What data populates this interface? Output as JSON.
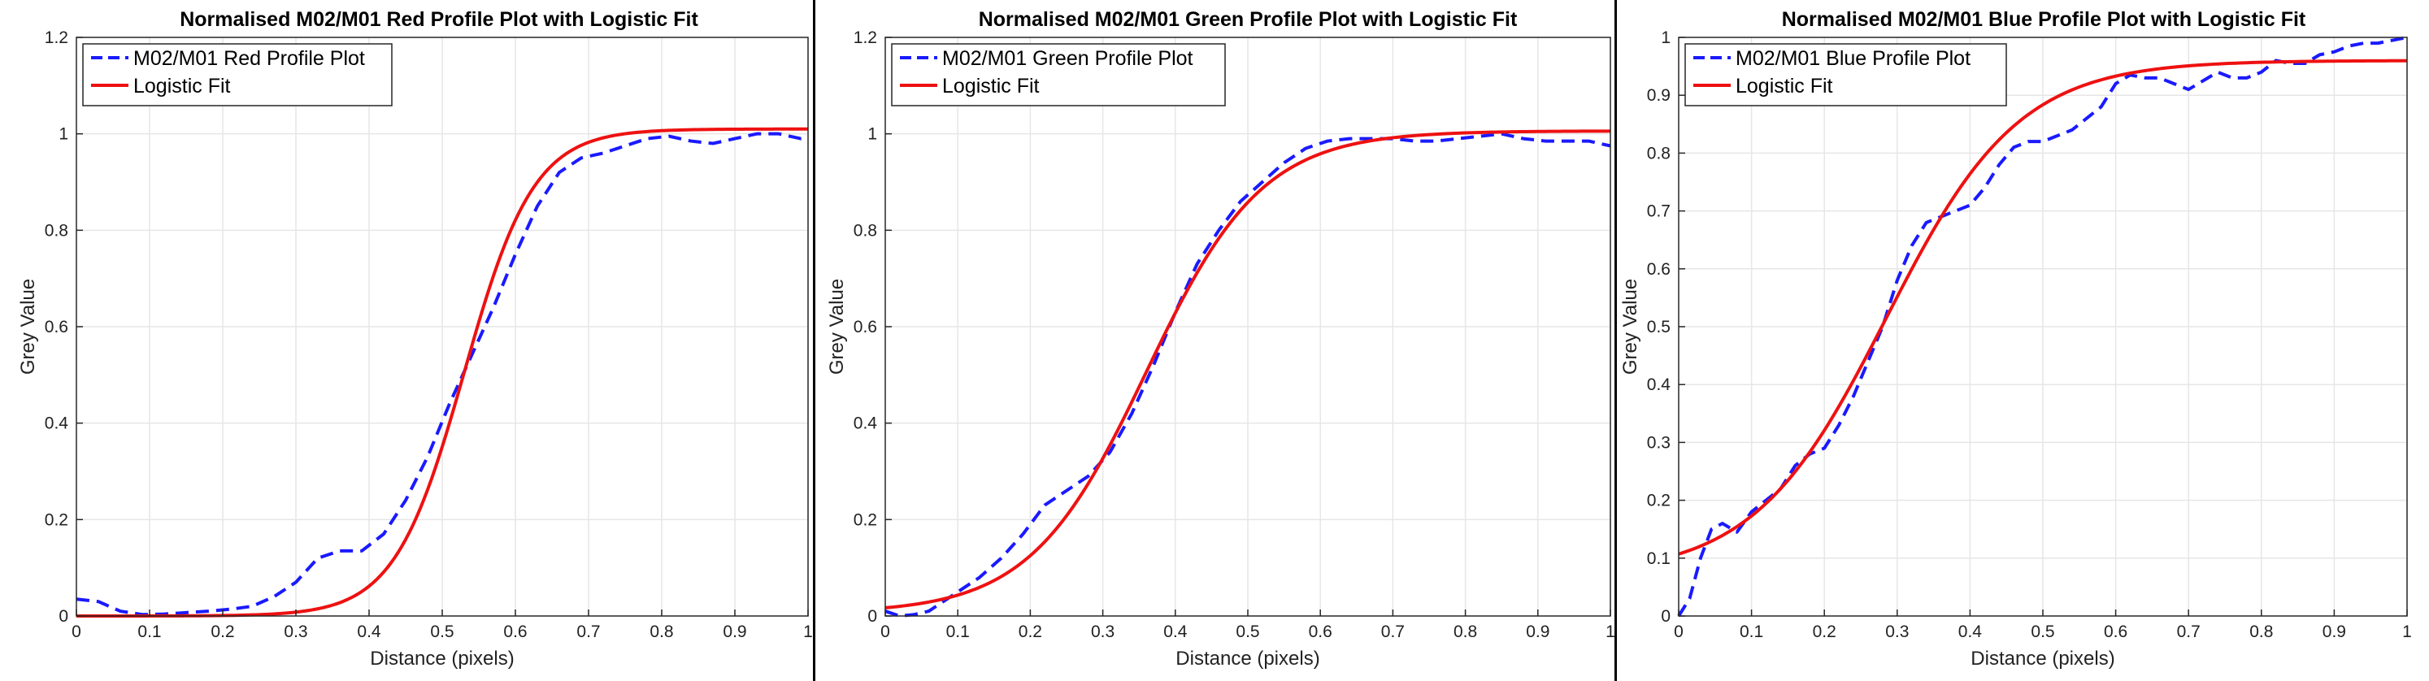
{
  "colors": {
    "profile": "#1a1aff",
    "fit": "#ee1111",
    "grid": "#e6e6e6",
    "axis": "#262626"
  },
  "chart_data": [
    {
      "type": "line",
      "title": "Normalised M02/M01 Red Profile Plot with Logistic Fit",
      "xlabel": "Distance (pixels)",
      "ylabel": "Grey Value",
      "xlim": [
        0,
        1
      ],
      "ylim": [
        0,
        1.2
      ],
      "xticks": [
        0,
        0.1,
        0.2,
        0.3,
        0.4,
        0.5,
        0.6,
        0.7,
        0.8,
        0.9,
        1
      ],
      "xtick_labels": [
        "0",
        "0.1",
        "0.2",
        "0.3",
        "0.4",
        "0.5",
        "0.6",
        "0.7",
        "0.8",
        "0.9",
        "1"
      ],
      "yticks": [
        0,
        0.2,
        0.4,
        0.6,
        0.8,
        1,
        1.2
      ],
      "ytick_labels": [
        "0",
        "0.2",
        "0.4",
        "0.6",
        "0.8",
        "1",
        "1.2"
      ],
      "grid": true,
      "legend_position": "top-left",
      "series": [
        {
          "name": "M02/M01 Red Profile Plot",
          "style": "dashed",
          "x": [
            0,
            0.03,
            0.06,
            0.09,
            0.12,
            0.15,
            0.18,
            0.21,
            0.24,
            0.27,
            0.3,
            0.33,
            0.36,
            0.39,
            0.42,
            0.45,
            0.48,
            0.51,
            0.54,
            0.57,
            0.6,
            0.63,
            0.66,
            0.69,
            0.72,
            0.75,
            0.78,
            0.81,
            0.84,
            0.87,
            0.9,
            0.93,
            0.96,
            0.99,
            1
          ],
          "y": [
            0.035,
            0.03,
            0.01,
            0.003,
            0.004,
            0.007,
            0.01,
            0.014,
            0.02,
            0.04,
            0.07,
            0.12,
            0.135,
            0.135,
            0.17,
            0.24,
            0.33,
            0.44,
            0.54,
            0.64,
            0.75,
            0.85,
            0.92,
            0.95,
            0.96,
            0.975,
            0.99,
            0.995,
            0.985,
            0.98,
            0.99,
            1.0,
            1.0,
            0.99,
            0.99
          ]
        },
        {
          "name": "Logistic Fit",
          "style": "solid",
          "model": "logistic",
          "params": {
            "L": 1.01,
            "k": 21,
            "x0": 0.53,
            "c": 0
          }
        }
      ]
    },
    {
      "type": "line",
      "title": "Normalised M02/M01 Green Profile Plot with Logistic Fit",
      "xlabel": "Distance (pixels)",
      "ylabel": "Grey Value",
      "xlim": [
        0,
        1
      ],
      "ylim": [
        0,
        1.2
      ],
      "xticks": [
        0,
        0.1,
        0.2,
        0.3,
        0.4,
        0.5,
        0.6,
        0.7,
        0.8,
        0.9,
        1
      ],
      "xtick_labels": [
        "0",
        "0.1",
        "0.2",
        "0.3",
        "0.4",
        "0.5",
        "0.6",
        "0.7",
        "0.8",
        "0.9",
        "1"
      ],
      "yticks": [
        0,
        0.2,
        0.4,
        0.6,
        0.8,
        1,
        1.2
      ],
      "ytick_labels": [
        "0",
        "0.2",
        "0.4",
        "0.6",
        "0.8",
        "1",
        "1.2"
      ],
      "grid": true,
      "legend_position": "top-left",
      "series": [
        {
          "name": "M02/M01 Green Profile Plot",
          "style": "dashed",
          "x": [
            0,
            0.02,
            0.04,
            0.06,
            0.08,
            0.1,
            0.13,
            0.16,
            0.19,
            0.22,
            0.25,
            0.28,
            0.31,
            0.34,
            0.37,
            0.4,
            0.43,
            0.46,
            0.49,
            0.52,
            0.55,
            0.58,
            0.61,
            0.64,
            0.67,
            0.7,
            0.73,
            0.76,
            0.79,
            0.82,
            0.85,
            0.88,
            0.91,
            0.94,
            0.97,
            1
          ],
          "y": [
            0.01,
            0.0,
            0.003,
            0.01,
            0.03,
            0.05,
            0.08,
            0.12,
            0.17,
            0.23,
            0.26,
            0.29,
            0.34,
            0.42,
            0.52,
            0.63,
            0.73,
            0.8,
            0.86,
            0.9,
            0.94,
            0.97,
            0.985,
            0.99,
            0.99,
            0.99,
            0.985,
            0.985,
            0.99,
            0.995,
            1.0,
            0.99,
            0.985,
            0.985,
            0.985,
            0.975
          ]
        },
        {
          "name": "Logistic Fit",
          "style": "solid",
          "model": "logistic",
          "params": {
            "L": 1.0,
            "k": 12.5,
            "x0": 0.36,
            "c": 0.006
          }
        }
      ]
    },
    {
      "type": "line",
      "title": "Normalised M02/M01 Blue Profile Plot with Logistic Fit",
      "xlabel": "Distance (pixels)",
      "ylabel": "Grey Value",
      "xlim": [
        0,
        1
      ],
      "ylim": [
        0,
        1
      ],
      "xticks": [
        0,
        0.1,
        0.2,
        0.3,
        0.4,
        0.5,
        0.6,
        0.7,
        0.8,
        0.9,
        1
      ],
      "xtick_labels": [
        "0",
        "0.1",
        "0.2",
        "0.3",
        "0.4",
        "0.5",
        "0.6",
        "0.7",
        "0.8",
        "0.9",
        "1"
      ],
      "yticks": [
        0,
        0.1,
        0.2,
        0.3,
        0.4,
        0.5,
        0.6,
        0.7,
        0.8,
        0.9,
        1
      ],
      "ytick_labels": [
        "0",
        "0.1",
        "0.2",
        "0.3",
        "0.4",
        "0.5",
        "0.6",
        "0.7",
        "0.8",
        "0.9",
        "1"
      ],
      "grid": true,
      "legend_position": "top-left",
      "series": [
        {
          "name": "M02/M01 Blue Profile Plot",
          "style": "dashed",
          "x": [
            0,
            0.015,
            0.03,
            0.045,
            0.06,
            0.08,
            0.1,
            0.12,
            0.14,
            0.16,
            0.18,
            0.2,
            0.22,
            0.24,
            0.26,
            0.28,
            0.3,
            0.32,
            0.34,
            0.36,
            0.38,
            0.4,
            0.42,
            0.44,
            0.46,
            0.48,
            0.5,
            0.52,
            0.54,
            0.56,
            0.58,
            0.6,
            0.62,
            0.64,
            0.66,
            0.68,
            0.7,
            0.72,
            0.74,
            0.76,
            0.78,
            0.8,
            0.82,
            0.84,
            0.86,
            0.88,
            0.9,
            0.92,
            0.94,
            0.96,
            0.98,
            1
          ],
          "y": [
            0.0,
            0.03,
            0.1,
            0.15,
            0.16,
            0.145,
            0.18,
            0.2,
            0.22,
            0.26,
            0.28,
            0.29,
            0.33,
            0.38,
            0.44,
            0.5,
            0.58,
            0.64,
            0.68,
            0.69,
            0.7,
            0.71,
            0.74,
            0.78,
            0.81,
            0.82,
            0.82,
            0.83,
            0.84,
            0.86,
            0.88,
            0.92,
            0.935,
            0.93,
            0.93,
            0.92,
            0.91,
            0.925,
            0.94,
            0.93,
            0.93,
            0.94,
            0.96,
            0.955,
            0.955,
            0.97,
            0.975,
            0.985,
            0.99,
            0.99,
            0.995,
            1.0
          ]
        },
        {
          "name": "Logistic Fit",
          "style": "solid",
          "model": "logistic",
          "params": {
            "L": 0.89,
            "k": 11,
            "x0": 0.285,
            "c": 0.07
          }
        }
      ]
    }
  ]
}
